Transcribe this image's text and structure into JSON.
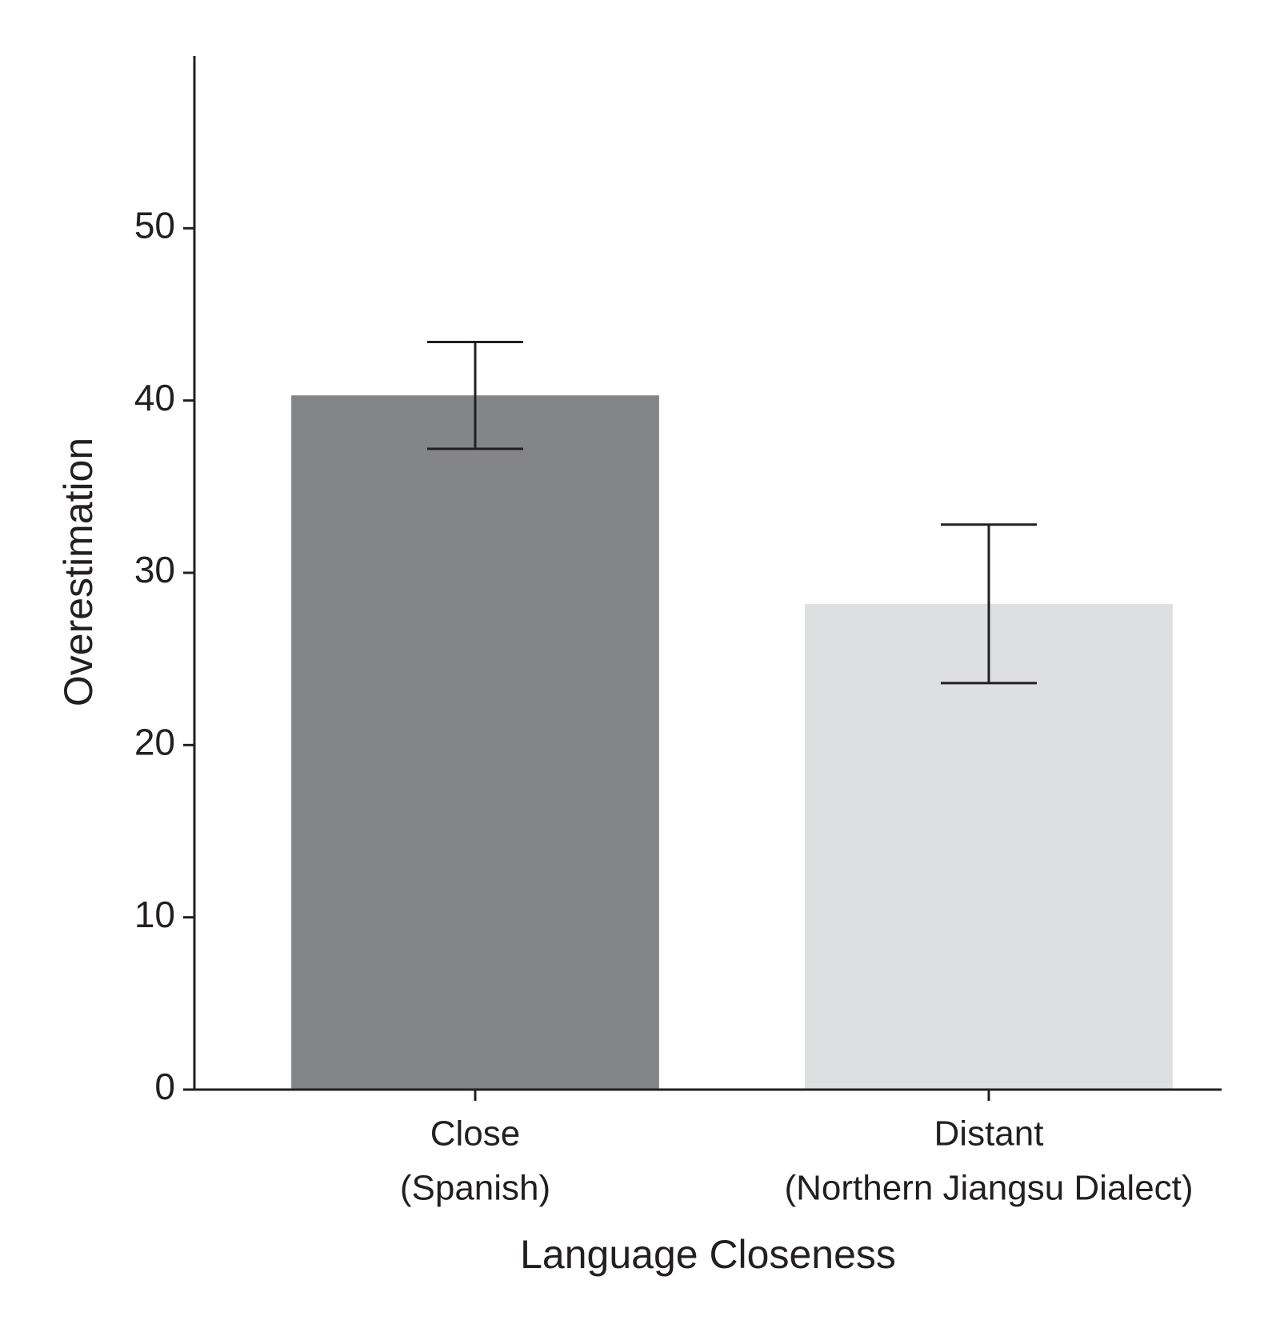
{
  "chart_data": {
    "type": "bar",
    "x_label": "Language Closeness",
    "y_label": "Overestimation",
    "categories": [
      [
        "Close",
        "(Spanish)"
      ],
      [
        "Distant",
        "(Northern Jiangsu Dialect)"
      ]
    ],
    "values": [
      40.3,
      28.2
    ],
    "errors": [
      3.1,
      4.6
    ],
    "colors": [
      "#848588",
      "#dedfe1"
    ],
    "ylim": [
      0,
      60
    ],
    "yticks": [
      0,
      10,
      20,
      30,
      40,
      50
    ],
    "grid": false
  }
}
